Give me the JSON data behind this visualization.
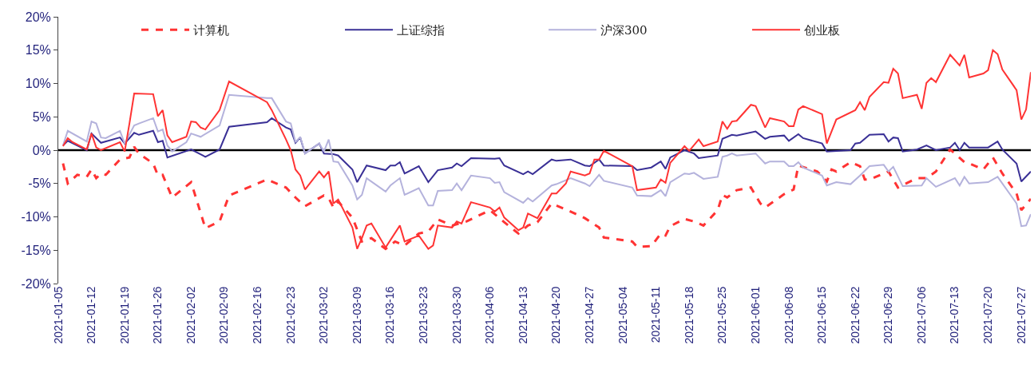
{
  "chart_data": {
    "type": "line",
    "legend": "top",
    "grid": false,
    "xlim": [
      "2021-01-05",
      "2021-07-29"
    ],
    "xticks": [
      {
        "value": "2021-01-05",
        "label": "2021-01-05"
      },
      {
        "value": "2021-01-12",
        "label": "2021-01-12"
      },
      {
        "value": "2021-01-19",
        "label": "2021-01-19"
      },
      {
        "value": "2021-01-26",
        "label": "2021-01-26"
      },
      {
        "value": "2021-02-02",
        "label": "2021-02-02"
      },
      {
        "value": "2021-02-09",
        "label": "2021-02-09"
      },
      {
        "value": "2021-02-16",
        "label": "2021-02-16"
      },
      {
        "value": "2021-02-23",
        "label": "2021-02-23"
      },
      {
        "value": "2021-03-02",
        "label": "2021-03-02"
      },
      {
        "value": "2021-03-09",
        "label": "2021-03-09"
      },
      {
        "value": "2021-03-16",
        "label": "2021-03-16"
      },
      {
        "value": "2021-03-23",
        "label": "2021-03-23"
      },
      {
        "value": "2021-03-30",
        "label": "2021-03-30"
      },
      {
        "value": "2021-04-06",
        "label": "2021-04-06"
      },
      {
        "value": "2021-04-13",
        "label": "2021-04-13"
      },
      {
        "value": "2021-04-20",
        "label": "2021-04-20"
      },
      {
        "value": "2021-04-27",
        "label": "2021-04-27"
      },
      {
        "value": "2021-05-04",
        "label": "2021-05-04"
      },
      {
        "value": "2021-05-11",
        "label": "2021-05-11"
      },
      {
        "value": "2021-05-18",
        "label": "2021-05-18"
      },
      {
        "value": "2021-05-25",
        "label": "2021-05-25"
      },
      {
        "value": "2021-06-01",
        "label": "2021-06-01"
      },
      {
        "value": "2021-06-08",
        "label": "2021-06-08"
      },
      {
        "value": "2021-06-15",
        "label": "2021-06-15"
      },
      {
        "value": "2021-06-22",
        "label": "2021-06-22"
      },
      {
        "value": "2021-06-29",
        "label": "2021-06-29"
      },
      {
        "value": "2021-07-06",
        "label": "2021-07-06"
      },
      {
        "value": "2021-07-13",
        "label": "2021-07-13"
      },
      {
        "value": "2021-07-20",
        "label": "2021-07-20"
      },
      {
        "value": "2021-07-27",
        "label": "2021-07-27"
      }
    ],
    "ylim": [
      -20,
      20
    ],
    "yticks": [
      {
        "value": -20,
        "label": "-20%"
      },
      {
        "value": -15,
        "label": "-15%"
      },
      {
        "value": -10,
        "label": "-10%"
      },
      {
        "value": -5,
        "label": "-5%"
      },
      {
        "value": 0,
        "label": "0%"
      },
      {
        "value": 5,
        "label": "5%"
      },
      {
        "value": 10,
        "label": "10%"
      },
      {
        "value": 15,
        "label": "15%"
      },
      {
        "value": 20,
        "label": "20%"
      }
    ],
    "ref_lines": [
      {
        "axis": "y",
        "value": 0,
        "color": "#000000",
        "line_style": "solid"
      }
    ],
    "series": [
      {
        "name": "计算机",
        "color": "#ff3333",
        "line_style": "dashed",
        "x": [
          "2021-01-06",
          "2021-01-07",
          "2021-01-09",
          "2021-01-11",
          "2021-01-12",
          "2021-01-13",
          "2021-01-14",
          "2021-01-15",
          "2021-01-18",
          "2021-01-20",
          "2021-01-21",
          "2021-01-22",
          "2021-01-25",
          "2021-01-26",
          "2021-01-27",
          "2021-01-29",
          "2021-02-02",
          "2021-02-05",
          "2021-02-08",
          "2021-02-10",
          "2021-02-18",
          "2021-02-22",
          "2021-02-24",
          "2021-02-26",
          "2021-03-02",
          "2021-03-03",
          "2021-03-04",
          "2021-03-05",
          "2021-03-08",
          "2021-03-10",
          "2021-03-12",
          "2021-03-15",
          "2021-03-17",
          "2021-03-19",
          "2021-03-22",
          "2021-03-24",
          "2021-03-26",
          "2021-03-29",
          "2021-04-01",
          "2021-04-06",
          "2021-04-09",
          "2021-04-12",
          "2021-04-14",
          "2021-04-16",
          "2021-04-19",
          "2021-04-22",
          "2021-04-26",
          "2021-04-29",
          "2021-04-30",
          "2021-05-06",
          "2021-05-07",
          "2021-05-10",
          "2021-05-12",
          "2021-05-13",
          "2021-05-14",
          "2021-05-17",
          "2021-05-19",
          "2021-05-21",
          "2021-05-24",
          "2021-05-25",
          "2021-05-26",
          "2021-05-28",
          "2021-05-31",
          "2021-06-02",
          "2021-06-03",
          "2021-06-07",
          "2021-06-09",
          "2021-06-10",
          "2021-06-14",
          "2021-06-16",
          "2021-06-17",
          "2021-06-18",
          "2021-06-21",
          "2021-06-23",
          "2021-06-24",
          "2021-06-25",
          "2021-06-29",
          "2021-07-01",
          "2021-07-05",
          "2021-07-07",
          "2021-07-09",
          "2021-07-12",
          "2021-07-15",
          "2021-07-16",
          "2021-07-19",
          "2021-07-21",
          "2021-07-23",
          "2021-07-26",
          "2021-07-27",
          "2021-07-29"
        ],
        "values": [
          -2.0,
          -5.0,
          -3.7,
          -4.0,
          -2.9,
          -4.2,
          -3.5,
          -3.7,
          -1.4,
          -1.1,
          0.5,
          -0.5,
          -2.0,
          -3.8,
          -3.7,
          -7.1,
          -4.8,
          -11.7,
          -10.7,
          -6.8,
          -4.4,
          -5.6,
          -7.1,
          -8.4,
          -6.8,
          -7.2,
          -8.6,
          -7.7,
          -10.1,
          -13.7,
          -13.2,
          -14.8,
          -13.7,
          -14.3,
          -12.5,
          -12.2,
          -10.4,
          -11.3,
          -10.7,
          -9.0,
          -10.8,
          -12.5,
          -11.3,
          -10.8,
          -8.0,
          -8.9,
          -10.2,
          -11.6,
          -13.1,
          -13.7,
          -14.5,
          -14.4,
          -12.5,
          -12.8,
          -11.4,
          -10.3,
          -10.7,
          -11.3,
          -9.0,
          -6.7,
          -7.1,
          -6.0,
          -5.6,
          -8.0,
          -8.6,
          -6.6,
          -5.9,
          -2.3,
          -3.2,
          -4.7,
          -2.9,
          -3.2,
          -1.8,
          -2.4,
          -4.4,
          -4.4,
          -3.2,
          -5.6,
          -4.2,
          -4.2,
          -3.2,
          0.1,
          -1.8,
          -2.0,
          -2.9,
          -1.1,
          -3.5,
          -6.5,
          -9.0,
          -7.3
        ]
      },
      {
        "name": "上证综指",
        "color": "#3a3096",
        "line_style": "solid",
        "x": [
          "2021-01-06",
          "2021-01-07",
          "2021-01-11",
          "2021-01-12",
          "2021-01-14",
          "2021-01-18",
          "2021-01-19",
          "2021-01-21",
          "2021-01-22",
          "2021-01-25",
          "2021-01-26",
          "2021-01-27",
          "2021-01-28",
          "2021-02-02",
          "2021-02-05",
          "2021-02-08",
          "2021-02-10",
          "2021-02-18",
          "2021-02-19",
          "2021-02-22",
          "2021-02-23",
          "2021-02-24",
          "2021-02-25",
          "2021-02-26",
          "2021-03-01",
          "2021-03-02",
          "2021-03-04",
          "2021-03-05",
          "2021-03-08",
          "2021-03-09",
          "2021-03-11",
          "2021-03-15",
          "2021-03-16",
          "2021-03-17",
          "2021-03-18",
          "2021-03-19",
          "2021-03-22",
          "2021-03-24",
          "2021-03-26",
          "2021-03-29",
          "2021-03-30",
          "2021-03-31",
          "2021-04-02",
          "2021-04-07",
          "2021-04-08",
          "2021-04-09",
          "2021-04-13",
          "2021-04-14",
          "2021-04-15",
          "2021-04-19",
          "2021-04-20",
          "2021-04-23",
          "2021-04-26",
          "2021-04-27",
          "2021-04-29",
          "2021-04-30",
          "2021-05-06",
          "2021-05-07",
          "2021-05-10",
          "2021-05-12",
          "2021-05-13",
          "2021-05-14",
          "2021-05-17",
          "2021-05-19",
          "2021-05-20",
          "2021-05-24",
          "2021-05-25",
          "2021-05-27",
          "2021-05-28",
          "2021-06-01",
          "2021-06-03",
          "2021-06-04",
          "2021-06-07",
          "2021-06-08",
          "2021-06-10",
          "2021-06-11",
          "2021-06-15",
          "2021-06-16",
          "2021-06-21",
          "2021-06-22",
          "2021-06-23",
          "2021-06-25",
          "2021-06-28",
          "2021-06-29",
          "2021-06-30",
          "2021-07-01",
          "2021-07-02",
          "2021-07-05",
          "2021-07-07",
          "2021-07-09",
          "2021-07-12",
          "2021-07-13",
          "2021-07-14",
          "2021-07-15",
          "2021-07-16",
          "2021-07-20",
          "2021-07-22",
          "2021-07-23",
          "2021-07-26",
          "2021-07-27",
          "2021-07-29"
        ],
        "values": [
          0.7,
          1.4,
          0.0,
          2.5,
          1.1,
          1.9,
          1.0,
          2.6,
          2.3,
          2.9,
          1.2,
          1.4,
          -1.1,
          0.1,
          -1.0,
          0.1,
          3.5,
          4.2,
          4.8,
          3.4,
          3.1,
          1.1,
          1.9,
          -0.5,
          1.0,
          -0.5,
          -0.6,
          -0.8,
          -2.9,
          -4.8,
          -2.3,
          -3.0,
          -2.3,
          -2.3,
          -1.8,
          -3.5,
          -2.4,
          -4.8,
          -3.0,
          -2.6,
          -2.0,
          -2.4,
          -1.2,
          -1.3,
          -1.2,
          -2.3,
          -3.6,
          -3.2,
          -3.6,
          -1.4,
          -1.6,
          -1.4,
          -2.3,
          -2.4,
          -1.4,
          -2.3,
          -2.4,
          -3.0,
          -2.6,
          -1.7,
          -2.8,
          -1.1,
          0.0,
          -0.5,
          -1.2,
          -0.8,
          1.7,
          2.3,
          2.2,
          2.8,
          1.7,
          2.0,
          2.2,
          1.4,
          2.4,
          1.8,
          1.0,
          -0.2,
          0.0,
          1.0,
          1.1,
          2.3,
          2.4,
          1.3,
          1.9,
          1.8,
          -0.2,
          0.1,
          0.7,
          0.0,
          0.4,
          1.1,
          0.0,
          1.1,
          0.4,
          0.4,
          1.3,
          0.1,
          -2.0,
          -4.7,
          -3.2
        ]
      },
      {
        "name": "沪深300",
        "color": "#b4b2dc",
        "line_style": "solid",
        "x": [
          "2021-01-06",
          "2021-01-07",
          "2021-01-11",
          "2021-01-12",
          "2021-01-13",
          "2021-01-14",
          "2021-01-15",
          "2021-01-18",
          "2021-01-19",
          "2021-01-21",
          "2021-01-22",
          "2021-01-25",
          "2021-01-26",
          "2021-01-27",
          "2021-01-28",
          "2021-01-29",
          "2021-02-01",
          "2021-02-02",
          "2021-02-04",
          "2021-02-08",
          "2021-02-10",
          "2021-02-18",
          "2021-02-19",
          "2021-02-22",
          "2021-02-23",
          "2021-02-24",
          "2021-02-25",
          "2021-02-26",
          "2021-03-01",
          "2021-03-02",
          "2021-03-03",
          "2021-03-04",
          "2021-03-05",
          "2021-03-08",
          "2021-03-09",
          "2021-03-10",
          "2021-03-11",
          "2021-03-15",
          "2021-03-16",
          "2021-03-18",
          "2021-03-19",
          "2021-03-22",
          "2021-03-24",
          "2021-03-25",
          "2021-03-26",
          "2021-03-29",
          "2021-03-30",
          "2021-03-31",
          "2021-04-02",
          "2021-04-06",
          "2021-04-07",
          "2021-04-08",
          "2021-04-09",
          "2021-04-13",
          "2021-04-14",
          "2021-04-15",
          "2021-04-19",
          "2021-04-20",
          "2021-04-23",
          "2021-04-26",
          "2021-04-27",
          "2021-04-29",
          "2021-04-30",
          "2021-05-06",
          "2021-05-07",
          "2021-05-10",
          "2021-05-12",
          "2021-05-13",
          "2021-05-14",
          "2021-05-17",
          "2021-05-18",
          "2021-05-19",
          "2021-05-21",
          "2021-05-24",
          "2021-05-25",
          "2021-05-26",
          "2021-05-27",
          "2021-05-28",
          "2021-06-01",
          "2021-06-03",
          "2021-06-04",
          "2021-06-07",
          "2021-06-08",
          "2021-06-09",
          "2021-06-10",
          "2021-06-11",
          "2021-06-15",
          "2021-06-16",
          "2021-06-18",
          "2021-06-21",
          "2021-06-23",
          "2021-06-25",
          "2021-06-28",
          "2021-06-29",
          "2021-06-30",
          "2021-07-02",
          "2021-07-06",
          "2021-07-07",
          "2021-07-09",
          "2021-07-13",
          "2021-07-14",
          "2021-07-15",
          "2021-07-16",
          "2021-07-20",
          "2021-07-22",
          "2021-07-26",
          "2021-07-27",
          "2021-07-28",
          "2021-07-29"
        ],
        "values": [
          0.7,
          2.9,
          1.3,
          4.3,
          4.0,
          1.9,
          1.8,
          2.9,
          1.0,
          3.7,
          4.0,
          4.8,
          2.8,
          3.1,
          0.7,
          -0.2,
          1.2,
          2.5,
          2.0,
          3.7,
          8.3,
          7.8,
          7.8,
          4.3,
          4.0,
          1.2,
          2.0,
          -0.5,
          1.0,
          -0.2,
          1.6,
          -1.7,
          -1.8,
          -5.3,
          -7.4,
          -6.7,
          -4.2,
          -6.2,
          -5.3,
          -4.2,
          -6.7,
          -5.7,
          -8.3,
          -8.3,
          -6.1,
          -6.0,
          -5.0,
          -6.0,
          -3.8,
          -4.2,
          -4.9,
          -4.8,
          -6.3,
          -7.9,
          -7.2,
          -7.7,
          -5.3,
          -5.1,
          -4.2,
          -5.0,
          -5.4,
          -3.7,
          -4.6,
          -5.6,
          -6.8,
          -6.9,
          -6.0,
          -6.9,
          -4.8,
          -3.5,
          -3.6,
          -3.4,
          -4.3,
          -4.0,
          -1.0,
          -0.8,
          -0.5,
          -0.8,
          -0.5,
          -2.0,
          -1.7,
          -1.7,
          -2.4,
          -2.4,
          -1.8,
          -2.6,
          -3.8,
          -5.3,
          -4.8,
          -5.1,
          -3.8,
          -2.4,
          -2.2,
          -3.2,
          -2.5,
          -5.4,
          -5.3,
          -4.2,
          -5.5,
          -4.2,
          -5.3,
          -4.0,
          -5.0,
          -4.8,
          -4.0,
          -8.0,
          -11.4,
          -11.3,
          -9.6
        ]
      },
      {
        "name": "创业板",
        "color": "#ff3333",
        "line_style": "solid",
        "x": [
          "2021-01-06",
          "2021-01-07",
          "2021-01-08",
          "2021-01-11",
          "2021-01-12",
          "2021-01-13",
          "2021-01-14",
          "2021-01-18",
          "2021-01-19",
          "2021-01-20",
          "2021-01-21",
          "2021-01-25",
          "2021-01-26",
          "2021-01-27",
          "2021-01-28",
          "2021-01-29",
          "2021-02-01",
          "2021-02-02",
          "2021-02-03",
          "2021-02-04",
          "2021-02-05",
          "2021-02-08",
          "2021-02-10",
          "2021-02-18",
          "2021-02-19",
          "2021-02-22",
          "2021-02-23",
          "2021-02-24",
          "2021-02-25",
          "2021-02-26",
          "2021-03-01",
          "2021-03-02",
          "2021-03-03",
          "2021-03-04",
          "2021-03-05",
          "2021-03-08",
          "2021-03-09",
          "2021-03-10",
          "2021-03-11",
          "2021-03-12",
          "2021-03-15",
          "2021-03-18",
          "2021-03-19",
          "2021-03-22",
          "2021-03-24",
          "2021-03-25",
          "2021-03-26",
          "2021-03-29",
          "2021-03-30",
          "2021-03-31",
          "2021-04-02",
          "2021-04-06",
          "2021-04-07",
          "2021-04-08",
          "2021-04-09",
          "2021-04-12",
          "2021-04-13",
          "2021-04-14",
          "2021-04-16",
          "2021-04-19",
          "2021-04-20",
          "2021-04-22",
          "2021-04-23",
          "2021-04-26",
          "2021-04-27",
          "2021-04-28",
          "2021-04-29",
          "2021-04-30",
          "2021-05-06",
          "2021-05-07",
          "2021-05-11",
          "2021-05-12",
          "2021-05-13",
          "2021-05-14",
          "2021-05-17",
          "2021-05-18",
          "2021-05-20",
          "2021-05-21",
          "2021-05-24",
          "2021-05-25",
          "2021-05-26",
          "2021-05-27",
          "2021-05-28",
          "2021-05-31",
          "2021-06-01",
          "2021-06-03",
          "2021-06-04",
          "2021-06-07",
          "2021-06-08",
          "2021-06-09",
          "2021-06-10",
          "2021-06-11",
          "2021-06-15",
          "2021-06-16",
          "2021-06-18",
          "2021-06-22",
          "2021-06-23",
          "2021-06-24",
          "2021-06-25",
          "2021-06-28",
          "2021-06-29",
          "2021-06-30",
          "2021-07-01",
          "2021-07-02",
          "2021-07-05",
          "2021-07-06",
          "2021-07-07",
          "2021-07-08",
          "2021-07-09",
          "2021-07-12",
          "2021-07-14",
          "2021-07-15",
          "2021-07-16",
          "2021-07-19",
          "2021-07-20",
          "2021-07-21",
          "2021-07-22",
          "2021-07-23",
          "2021-07-26",
          "2021-07-27",
          "2021-07-28",
          "2021-07-29"
        ],
        "values": [
          0.6,
          1.8,
          1.2,
          0.1,
          2.5,
          0.4,
          0.0,
          1.2,
          -0.2,
          4.0,
          8.5,
          8.4,
          5.1,
          6.0,
          2.2,
          1.2,
          2.0,
          4.3,
          4.2,
          3.4,
          3.1,
          6.0,
          10.3,
          7.2,
          6.0,
          1.6,
          0.0,
          -2.9,
          -3.8,
          -5.9,
          -3.2,
          -4.1,
          -3.2,
          -8.0,
          -7.4,
          -11.6,
          -14.8,
          -13.2,
          -11.3,
          -11.0,
          -14.6,
          -11.3,
          -13.7,
          -12.8,
          -14.8,
          -14.3,
          -11.3,
          -11.6,
          -10.7,
          -11.0,
          -7.8,
          -8.6,
          -9.2,
          -8.6,
          -10.1,
          -12.0,
          -11.6,
          -9.5,
          -10.2,
          -6.5,
          -6.5,
          -5.0,
          -3.2,
          -3.8,
          -3.5,
          -1.4,
          -1.4,
          -0.1,
          -2.4,
          -6.0,
          -5.6,
          -4.4,
          -4.9,
          -1.9,
          0.6,
          -0.1,
          1.6,
          0.6,
          1.3,
          4.3,
          3.2,
          4.3,
          4.4,
          6.8,
          6.6,
          3.4,
          4.8,
          4.3,
          3.6,
          3.6,
          6.1,
          6.6,
          5.4,
          1.0,
          4.6,
          6.0,
          7.2,
          6.0,
          8.0,
          10.2,
          10.1,
          12.2,
          11.5,
          7.8,
          8.3,
          6.2,
          10.1,
          10.8,
          10.2,
          14.3,
          12.7,
          14.3,
          10.9,
          11.5,
          12.0,
          15.0,
          14.4,
          12.1,
          9.0,
          4.6,
          6.1,
          11.7
        ]
      }
    ]
  }
}
